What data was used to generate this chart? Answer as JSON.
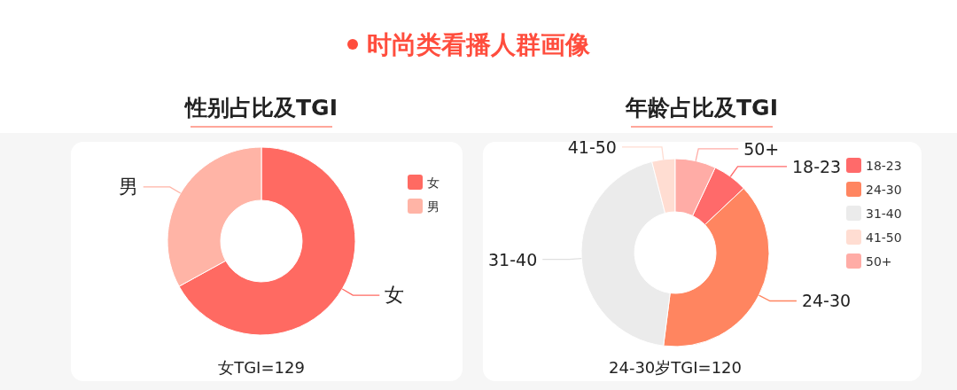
{
  "chart_data": [
    {
      "type": "other",
      "title": "时尚类看播人群画像",
      "color": "#ff4d3d"
    },
    {
      "type": "donut",
      "title": "性别占比及TGI",
      "categories": [
        "女",
        "男"
      ],
      "values": [
        67,
        33
      ],
      "colors": [
        "#ff6a62",
        "#ffb4a6"
      ],
      "legend": "top right",
      "annotations": [
        "女TGI=129"
      ]
    },
    {
      "type": "donut",
      "title": "年龄占比及TGI",
      "categories": [
        "18-23",
        "24-30",
        "31-40",
        "41-50",
        "50+"
      ],
      "values": [
        6,
        39,
        44,
        4,
        7
      ],
      "colors": [
        "#ff6a6a",
        "#ff8560",
        "#ebebeb",
        "#ffddd2",
        "#ffaca6"
      ],
      "legend": "top right",
      "annotations": [
        "24-30岁TGI=120"
      ]
    }
  ]
}
